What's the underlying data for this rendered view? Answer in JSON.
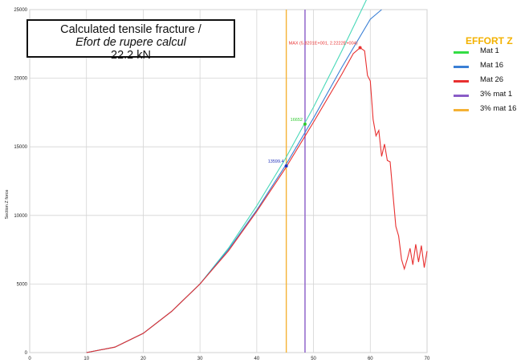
{
  "annotation_box": {
    "line1": "Calculated tensile fracture /",
    "line2": "Efort de rupere calcul",
    "line3": "22.2 kN"
  },
  "legend": {
    "title": "EFFORT Z",
    "items": [
      {
        "label": "Mat 1",
        "color": "#33dd44"
      },
      {
        "label": "Mat 16",
        "color": "#3a7fd5"
      },
      {
        "label": "Mat 26",
        "color": "#e83030"
      },
      {
        "label": "3% mat 1",
        "color": "#8a5cc7"
      },
      {
        "label": "3% mat 16",
        "color": "#f5b235"
      }
    ]
  },
  "chart_data": {
    "type": "line",
    "ylabel": "Section Z force",
    "xlim": [
      0,
      70
    ],
    "ylim": [
      0,
      25000
    ],
    "xticks": [
      0,
      10,
      20,
      30,
      40,
      50,
      60,
      70
    ],
    "yticks": [
      0,
      5000,
      10000,
      15000,
      20000,
      25000
    ],
    "grid": true,
    "vlines": [
      {
        "name": "3% mat 1",
        "x": 48.5,
        "color": "#8a5cc7"
      },
      {
        "name": "3% mat 16",
        "x": 45.2,
        "color": "#f5b235"
      }
    ],
    "series": [
      {
        "name": "Mat 1",
        "color": "#48d8b8",
        "x": [
          10,
          15,
          20,
          25,
          30,
          35,
          40,
          45,
          50,
          55,
          60
        ],
        "y": [
          0,
          400,
          1400,
          3000,
          5000,
          7600,
          10700,
          14100,
          17900,
          22000,
          26300
        ]
      },
      {
        "name": "Mat 16",
        "color": "#3a7fd5",
        "x": [
          10,
          15,
          20,
          25,
          30,
          35,
          40,
          45,
          50,
          55,
          60,
          62
        ],
        "y": [
          0,
          400,
          1400,
          3000,
          5000,
          7500,
          10400,
          13600,
          17100,
          20800,
          24300,
          25000
        ]
      },
      {
        "name": "Mat 26",
        "color": "#e83030",
        "x": [
          10,
          15,
          20,
          25,
          30,
          35,
          40,
          45,
          50,
          55,
          57,
          58.2,
          59,
          59.5,
          60,
          60.5,
          61,
          61.5,
          62,
          62.5,
          63,
          63.5,
          64,
          64.5,
          65,
          65.5,
          66,
          66.5,
          67,
          67.5,
          68,
          68.5,
          69,
          69.5,
          70
        ],
        "y": [
          0,
          400,
          1400,
          3000,
          5000,
          7400,
          10300,
          13400,
          16800,
          20300,
          21800,
          22222,
          22000,
          20200,
          19800,
          17000,
          15800,
          16200,
          14300,
          15200,
          14000,
          13900,
          11500,
          9200,
          8500,
          6800,
          6100,
          6800,
          7600,
          6400,
          7900,
          6600,
          7800,
          6200,
          7400
        ]
      }
    ],
    "points": [
      {
        "label": "16652",
        "x": 48.5,
        "y": 16652,
        "color": "#2ec92e"
      },
      {
        "label": "13599.4",
        "x": 45.2,
        "y": 13599.4,
        "color": "#2233bb"
      },
      {
        "label": "MAX (5.8201E+001, 2.2222E+004)",
        "x": 58.2,
        "y": 22222,
        "color": "#e83030"
      }
    ]
  }
}
